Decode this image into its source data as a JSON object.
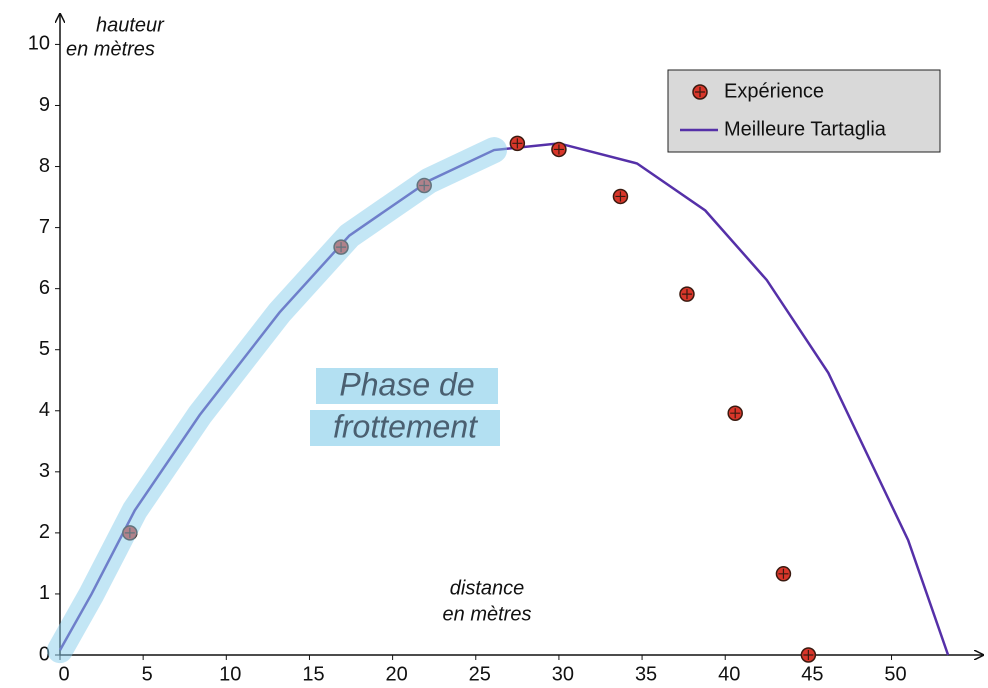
{
  "chart_data": {
    "type": "scatter+line",
    "x_label": [
      "distance",
      "en mètres"
    ],
    "y_label": [
      "hauteur",
      "en mètres"
    ],
    "annotation": [
      "Phase de",
      "frottement"
    ],
    "xlim": [
      0,
      55.5
    ],
    "ylim": [
      0,
      10.4
    ],
    "xticks": [
      0,
      5,
      10,
      15,
      20,
      25,
      30,
      35,
      40,
      45,
      50
    ],
    "yticks": [
      0,
      1,
      2,
      3,
      4,
      5,
      6,
      7,
      8,
      9,
      10
    ],
    "legend": "upper right",
    "series": [
      {
        "name": "Expérience",
        "kind": "scatter",
        "color": "#d8362a",
        "x": [
          4.2,
          16.9,
          21.9,
          27.5,
          30.0,
          33.7,
          37.7,
          40.6,
          43.5,
          45.0
        ],
        "values": [
          2.0,
          6.68,
          7.69,
          8.38,
          8.28,
          7.51,
          5.91,
          3.96,
          1.33,
          0
        ]
      },
      {
        "name": "Meilleure Tartaglia",
        "kind": "line",
        "color": "#5530a8",
        "x": [
          0,
          1.9,
          4.5,
          8.4,
          13.2,
          17.4,
          22.2,
          26.1,
          30,
          34.7,
          38.8,
          42.5,
          46.2,
          51,
          53.4
        ],
        "values": [
          0.08,
          1.0,
          2.37,
          3.93,
          5.61,
          6.87,
          7.77,
          8.27,
          8.38,
          8.05,
          7.28,
          6.14,
          4.62,
          1.88,
          0
        ]
      }
    ]
  }
}
